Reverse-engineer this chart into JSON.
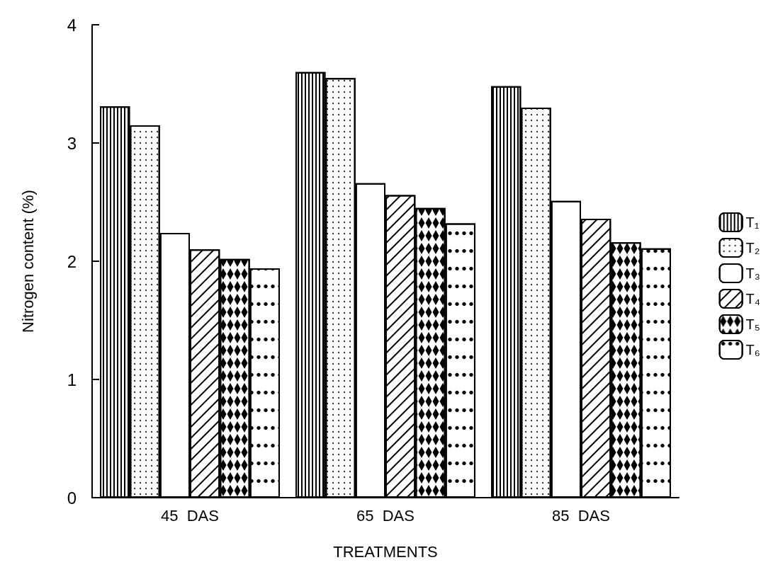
{
  "chart_data": {
    "type": "bar",
    "xlabel": "TREATMENTS",
    "ylabel": "Nitrogen content (%)",
    "categories": [
      "45  DAS",
      "65  DAS",
      "85  DAS"
    ],
    "series": [
      {
        "name": "T₁",
        "color": "#ffffff",
        "values": [
          3.31,
          3.6,
          3.48
        ]
      },
      {
        "name": "T₂",
        "color": "#ffffff",
        "values": [
          3.15,
          3.55,
          3.3
        ]
      },
      {
        "name": "T₃",
        "color": "#ffffff",
        "values": [
          2.24,
          2.66,
          2.51
        ]
      },
      {
        "name": "T₄",
        "color": "#ffffff",
        "values": [
          2.1,
          2.56,
          2.36
        ]
      },
      {
        "name": "T₅",
        "color": "#ffffff",
        "values": [
          2.02,
          2.45,
          2.16
        ]
      },
      {
        "name": "T₆",
        "color": "#ffffff",
        "values": [
          1.94,
          2.32,
          2.11
        ]
      }
    ],
    "ylim": [
      0,
      4
    ],
    "yticks": [
      0,
      1,
      2,
      3,
      4
    ],
    "grid": false,
    "legend": "right"
  }
}
